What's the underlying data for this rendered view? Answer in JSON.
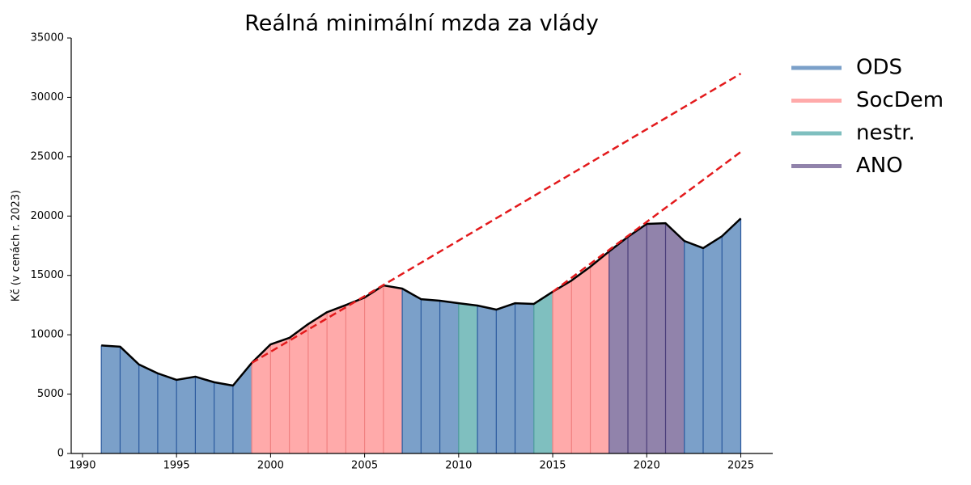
{
  "chart_data": {
    "type": "area",
    "title": "Reálná minimální mzda za vlády",
    "y_label": "Kč (v cenách r. 2023)",
    "x": [
      1991,
      1992,
      1993,
      1994,
      1995,
      1996,
      1997,
      1998,
      1999,
      2000,
      2001,
      2002,
      2003,
      2004,
      2005,
      2006,
      2007,
      2008,
      2009,
      2010,
      2011,
      2012,
      2013,
      2014,
      2015,
      2016,
      2017,
      2018,
      2019,
      2020,
      2021,
      2022,
      2023,
      2024,
      2025
    ],
    "values": [
      9100,
      9000,
      7500,
      6750,
      6200,
      6470,
      6000,
      5720,
      7630,
      9190,
      9740,
      10900,
      11900,
      12500,
      13140,
      14160,
      13890,
      13000,
      12870,
      12660,
      12460,
      12120,
      12660,
      12600,
      13620,
      14570,
      15730,
      17020,
      18250,
      19340,
      19400,
      17900,
      17300,
      18300,
      19800
    ],
    "line_color": "#000000",
    "parties": [
      {
        "name": "ODS",
        "color": "#7ba0c9",
        "edge": "#2b5a9e"
      },
      {
        "name": "SocDem",
        "color": "#ffaaaa",
        "edge": "#f08080"
      },
      {
        "name": "nestr.",
        "color": "#7fbfbf",
        "edge": "#4a9a9a"
      },
      {
        "name": "ANO",
        "color": "#9183ab",
        "edge": "#4a3d7a"
      }
    ],
    "periods": [
      {
        "party": "ODS",
        "from": 1991,
        "to": 1999
      },
      {
        "party": "SocDem",
        "from": 1999,
        "to": 2007
      },
      {
        "party": "ODS",
        "from": 2007,
        "to": 2010
      },
      {
        "party": "nestr.",
        "from": 2010,
        "to": 2011
      },
      {
        "party": "ODS",
        "from": 2011,
        "to": 2014
      },
      {
        "party": "nestr.",
        "from": 2014,
        "to": 2015
      },
      {
        "party": "SocDem",
        "from": 2015,
        "to": 2018
      },
      {
        "party": "ANO",
        "from": 2018,
        "to": 2022
      },
      {
        "party": "ODS",
        "from": 2022,
        "to": 2025
      }
    ],
    "trend_lines": [
      {
        "x": [
          1999,
          2025
        ],
        "values": [
          7630,
          32000
        ],
        "color": "#e31a1c"
      },
      {
        "x": [
          2015,
          2025
        ],
        "values": [
          13620,
          25400
        ],
        "color": "#e31a1c"
      }
    ],
    "xlim": [
      1989.4,
      2026.7
    ],
    "xticks": [
      1990,
      1995,
      2000,
      2005,
      2010,
      2015,
      2020,
      2025
    ],
    "ylim": [
      0,
      35000
    ],
    "yticks": [
      0,
      5000,
      10000,
      15000,
      20000,
      25000,
      30000,
      35000
    ],
    "legend": "outside-right"
  }
}
